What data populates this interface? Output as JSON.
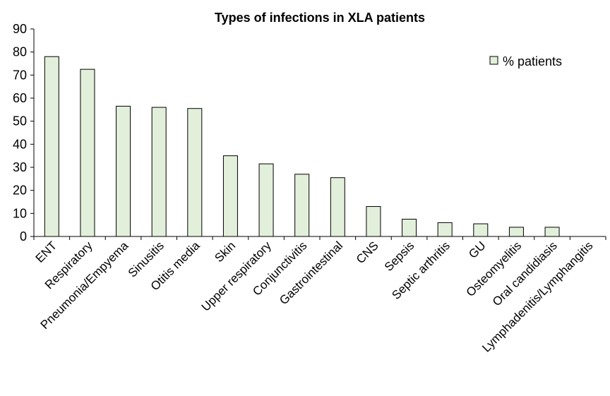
{
  "chart_data": {
    "type": "bar",
    "title": "Types of infections in XLA patients",
    "xlabel": "",
    "ylabel": "",
    "ylim": [
      0,
      90
    ],
    "yticks": [
      0,
      10,
      20,
      30,
      40,
      50,
      60,
      70,
      80,
      90
    ],
    "grid": false,
    "legend_position": "top-right",
    "bar_color": "#e2efda",
    "bar_stroke": "#000000",
    "categories": [
      "ENT",
      "Respiratory",
      "Pneumonia/Empyema",
      "Sinusitis",
      "Otitis media",
      "Skin",
      "Upper respiratory",
      "Conjunctivitis",
      "Gastrointestinal",
      "CNS",
      "Sepsis",
      "Septic arthritis",
      "GU",
      "Osteomyelitis",
      "Oral candidiasis",
      "Lymphadenitis/Lymphangitis"
    ],
    "series": [
      {
        "name": "% patients",
        "values": [
          78,
          72.5,
          56.5,
          56,
          55.5,
          35,
          31.5,
          27,
          25.5,
          13,
          7.5,
          6,
          5.5,
          4,
          4,
          0
        ]
      }
    ]
  }
}
